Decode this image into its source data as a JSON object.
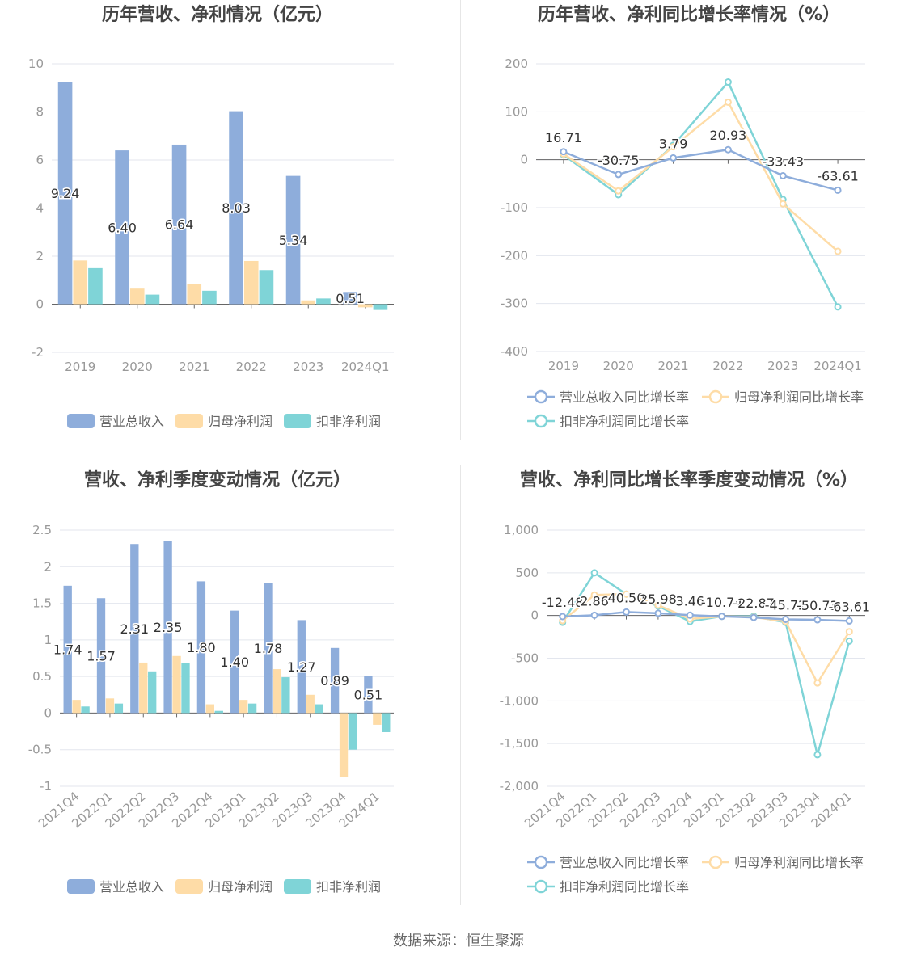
{
  "source_text": "数据来源：恒生聚源",
  "colors": {
    "revenue": "#8eaddb",
    "net_profit": "#fedca7",
    "deducted_profit": "#7fd4d7",
    "axis": "#999999",
    "grid": "#e3e6ee",
    "title": "#444444",
    "label": "#333333"
  },
  "chart_data": [
    {
      "type": "bar",
      "title": "历年营收、净利情况（亿元）",
      "categories": [
        "2019",
        "2020",
        "2021",
        "2022",
        "2023",
        "2024Q1"
      ],
      "ylim": [
        -2,
        10
      ],
      "yticks": [
        -2,
        0,
        2,
        4,
        6,
        8,
        10
      ],
      "legend_position": "bottom",
      "series": [
        {
          "name": "营业总收入",
          "values": [
            9.24,
            6.4,
            6.64,
            8.03,
            5.34,
            0.51
          ],
          "labels": [
            "9.24",
            "6.40",
            "6.64",
            "8.03",
            "5.34",
            "0.51"
          ]
        },
        {
          "name": "归母净利润",
          "values": [
            1.82,
            0.65,
            0.83,
            1.8,
            0.16,
            -0.13
          ]
        },
        {
          "name": "扣非净利润",
          "values": [
            1.5,
            0.4,
            0.56,
            1.42,
            0.24,
            -0.24
          ]
        }
      ]
    },
    {
      "type": "line",
      "title": "历年营收、净利同比增长率情况（%）",
      "categories": [
        "2019",
        "2020",
        "2021",
        "2022",
        "2023",
        "2024Q1"
      ],
      "ylim": [
        -400,
        200
      ],
      "yticks": [
        -400,
        -300,
        -200,
        -100,
        0,
        100,
        200
      ],
      "legend_position": "bottom",
      "series": [
        {
          "name": "营业总收入同比增长率",
          "values": [
            16.71,
            -30.75,
            3.79,
            20.93,
            -33.43,
            -63.61
          ],
          "labels": [
            "16.71",
            "-30.75",
            "3.79",
            "20.93",
            "-33.43",
            "-63.61"
          ]
        },
        {
          "name": "归母净利润同比增长率",
          "values": [
            12,
            -65,
            27,
            120,
            -92,
            -191
          ]
        },
        {
          "name": "扣非净利润同比增长率",
          "values": [
            10,
            -73,
            30,
            162,
            -83,
            -307
          ]
        }
      ]
    },
    {
      "type": "bar",
      "title": "营收、净利季度变动情况（亿元）",
      "categories": [
        "2021Q4",
        "2022Q1",
        "2022Q2",
        "2022Q3",
        "2022Q4",
        "2023Q1",
        "2023Q2",
        "2023Q3",
        "2023Q4",
        "2024Q1"
      ],
      "ylim": [
        -1,
        2.5
      ],
      "yticks": [
        -1,
        -0.5,
        0,
        0.5,
        1,
        1.5,
        2,
        2.5
      ],
      "legend_position": "bottom",
      "series": [
        {
          "name": "营业总收入",
          "values": [
            1.74,
            1.57,
            2.31,
            2.35,
            1.8,
            1.4,
            1.78,
            1.27,
            0.89,
            0.51
          ],
          "labels": [
            "1.74",
            "1.57",
            "2.31",
            "2.35",
            "1.80",
            "1.40",
            "1.78",
            "1.27",
            "0.89",
            "0.51"
          ]
        },
        {
          "name": "归母净利润",
          "values": [
            0.18,
            0.2,
            0.69,
            0.78,
            0.12,
            0.18,
            0.6,
            0.25,
            -0.87,
            -0.16
          ]
        },
        {
          "name": "扣非净利润",
          "values": [
            0.09,
            0.13,
            0.57,
            0.68,
            0.03,
            0.13,
            0.49,
            0.12,
            -0.5,
            -0.26
          ]
        }
      ]
    },
    {
      "type": "line",
      "title": "营收、净利同比增长率季度变动情况（%）",
      "categories": [
        "2021Q4",
        "2022Q1",
        "2022Q2",
        "2022Q3",
        "2022Q4",
        "2023Q1",
        "2023Q2",
        "2023Q3",
        "2023Q4",
        "2024Q1"
      ],
      "ylim": [
        -2000,
        1000
      ],
      "yticks": [
        -2000,
        -1500,
        -1000,
        -500,
        0,
        500,
        1000
      ],
      "ytick_labels": [
        "-2,000",
        "-1,500",
        "-1,000",
        "-500",
        "0",
        "500",
        "1,000"
      ],
      "legend_position": "bottom",
      "series": [
        {
          "name": "营业总收入同比增长率",
          "values": [
            -12.48,
            2.86,
            40.5,
            25.98,
            3.46,
            -10.74,
            -22.87,
            -45.72,
            -50.73,
            -63.61
          ],
          "labels": [
            "-12.48",
            "2.86",
            "40.50",
            "25.98",
            "3.46",
            "-10.74",
            "-22.87",
            "-45.72",
            "-50.73",
            "-63.61"
          ]
        },
        {
          "name": "归母净利润同比增长率",
          "values": [
            -60,
            240,
            250,
            120,
            -40,
            -10,
            -20,
            -70,
            -790,
            -190
          ]
        },
        {
          "name": "扣非净利润同比增长率",
          "values": [
            -80,
            500,
            250,
            110,
            -70,
            -10,
            -10,
            -80,
            -1630,
            -300
          ]
        }
      ]
    }
  ]
}
